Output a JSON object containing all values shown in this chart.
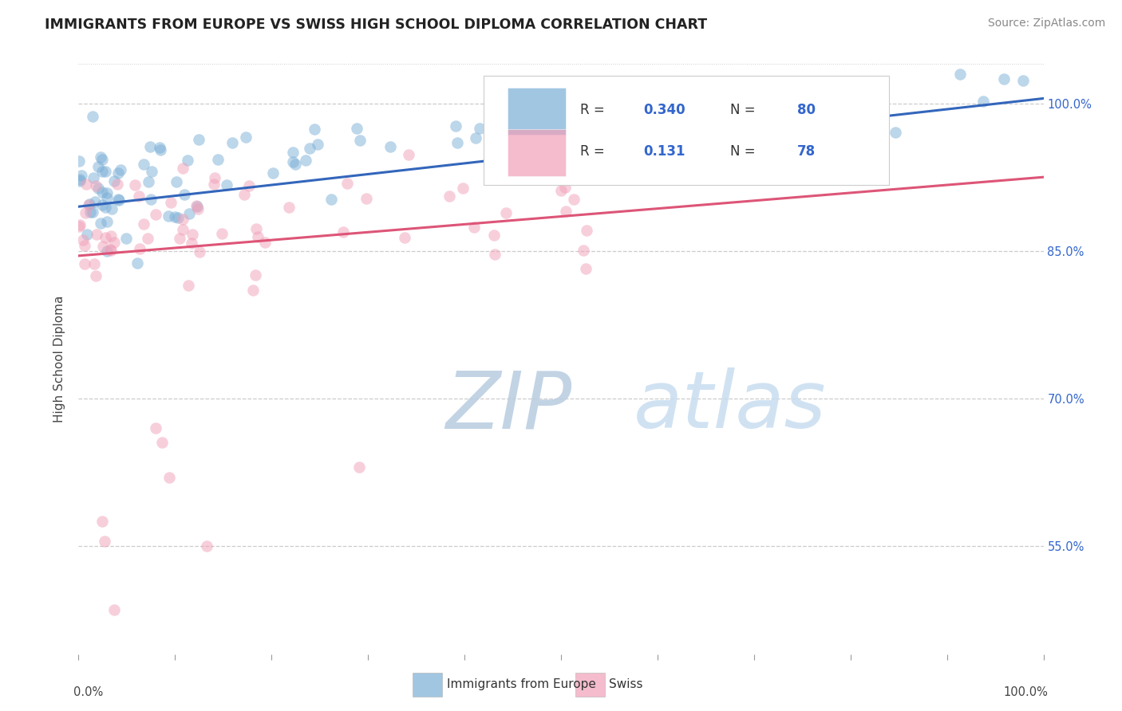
{
  "title": "IMMIGRANTS FROM EUROPE VS SWISS HIGH SCHOOL DIPLOMA CORRELATION CHART",
  "source_text": "Source: ZipAtlas.com",
  "ylabel": "High School Diploma",
  "xlim": [
    0.0,
    100.0
  ],
  "ylim": [
    44.0,
    104.0
  ],
  "y_tick_vals": [
    55,
    70,
    85,
    100
  ],
  "y_tick_labels": [
    "55.0%",
    "70.0%",
    "85.0%",
    "100.0%"
  ],
  "watermark_zip": "ZIP",
  "watermark_atlas": "atlas",
  "watermark_color": "#d0dff0",
  "background_color": "#ffffff",
  "dot_size": 110,
  "dot_alpha": 0.5,
  "blue_color": "#7aaed6",
  "pink_color": "#f0a0b8",
  "blue_line_color": "#3366bb",
  "pink_line_color": "#dd5577",
  "grid_color": "#cccccc",
  "blue_line_x": [
    0,
    100
  ],
  "blue_line_y": [
    89.5,
    100.5
  ],
  "pink_line_x": [
    0,
    100
  ],
  "pink_line_y": [
    84.5,
    92.5
  ],
  "legend_R_blue": "0.340",
  "legend_N_blue": "80",
  "legend_R_pink": "0.131",
  "legend_N_pink": "78",
  "legend_label_blue": "Immigrants from Europe",
  "legend_label_pink": "Swiss",
  "title_fontsize": 12.5,
  "source_fontsize": 10,
  "axis_label_fontsize": 11,
  "tick_fontsize": 10.5,
  "legend_fontsize": 12,
  "watermark_fontsize_zip": 72,
  "watermark_fontsize_atlas": 72
}
